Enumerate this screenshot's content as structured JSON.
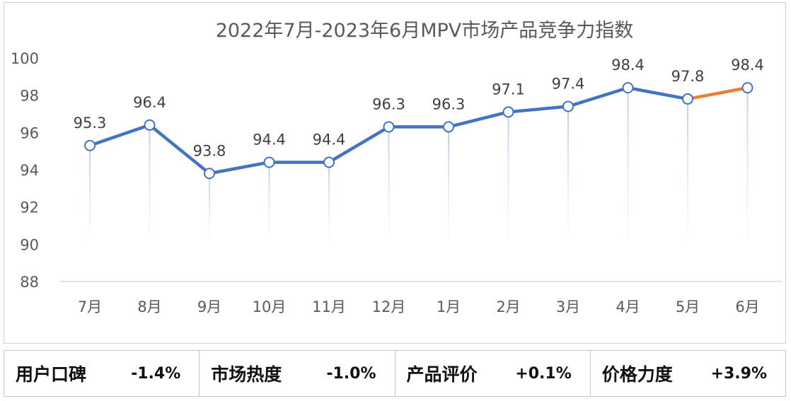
{
  "chart_data": {
    "type": "line",
    "title": "2022年7月-2023年6月MPV市场产品竞争力指数",
    "categories": [
      "7月",
      "8月",
      "9月",
      "10月",
      "11月",
      "12月",
      "1月",
      "2月",
      "3月",
      "4月",
      "5月",
      "6月"
    ],
    "series": [
      {
        "values": [
          95.3,
          96.4,
          93.8,
          94.4,
          94.4,
          96.3,
          96.3,
          97.1,
          97.4,
          98.4,
          97.8,
          98.4
        ]
      }
    ],
    "ylim": [
      88,
      100
    ],
    "yticks": [
      88,
      90,
      92,
      94,
      96,
      98,
      100
    ],
    "grid": false,
    "line_color": "#4472c4",
    "highlight_color": "#ed7d31",
    "highlight_last_segment": true,
    "drop_lines": true
  },
  "metrics": [
    {
      "label": "用户口碑",
      "value": "-1.4%"
    },
    {
      "label": "市场热度",
      "value": "-1.0%"
    },
    {
      "label": "产品评价",
      "value": "+0.1%"
    },
    {
      "label": "价格力度",
      "value": "+3.9%"
    }
  ]
}
